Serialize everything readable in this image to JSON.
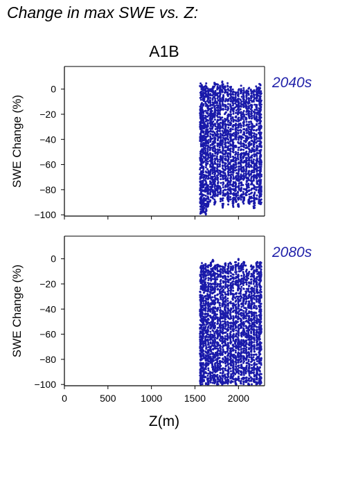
{
  "page": {
    "heading": "Change in max SWE vs. Z:",
    "scenario": "A1B",
    "xlabel": "Z(m)"
  },
  "colors": {
    "points": "#1a1aaa",
    "period_label": "#2222aa",
    "axis": "#000000"
  },
  "chart_data": [
    {
      "type": "scatter",
      "title": "A1B",
      "annotation": "2040s",
      "xlabel": "",
      "ylabel": "SWE Change (%)",
      "xlim": [
        0,
        2300
      ],
      "ylim": [
        -101,
        18
      ],
      "xticks": [],
      "yticks": [
        0,
        -20,
        -40,
        -60,
        -80,
        -100
      ],
      "grid": false,
      "series": [
        {
          "values_summary": "dense columns of points between Z=1560 and Z=2260 m",
          "x": [
            1565,
            1580,
            1600,
            1625,
            1650,
            1680,
            1705,
            1730,
            1760,
            1790,
            1820,
            1850,
            1880,
            1910,
            1940,
            1970,
            2000,
            2030,
            2060,
            2090,
            2120,
            2150,
            2180,
            2210,
            2240,
            2255
          ],
          "y_min": [
            -100,
            -99,
            -98,
            -100,
            -95,
            -90,
            -88,
            -92,
            -85,
            -90,
            -95,
            -86,
            -92,
            -88,
            -95,
            -90,
            -94,
            -88,
            -92,
            -85,
            -92,
            -90,
            -95,
            -88,
            -92,
            -93
          ],
          "y_max": [
            5,
            4,
            3,
            5,
            2,
            0,
            4,
            6,
            5,
            3,
            6,
            4,
            5,
            2,
            0,
            -2,
            0,
            3,
            1,
            0,
            2,
            0,
            0,
            3,
            5,
            5
          ]
        }
      ]
    },
    {
      "type": "scatter",
      "title": "",
      "annotation": "2080s",
      "xlabel": "Z(m)",
      "ylabel": "SWE Change (%)",
      "xlim": [
        0,
        2300
      ],
      "ylim": [
        -101,
        18
      ],
      "xticks": [
        0,
        500,
        1000,
        1500,
        2000
      ],
      "yticks": [
        0,
        -20,
        -40,
        -60,
        -80,
        -100
      ],
      "grid": false,
      "series": [
        {
          "values_summary": "dense columns of points between Z=1560 and Z=2260 m",
          "x": [
            1565,
            1580,
            1600,
            1625,
            1650,
            1680,
            1705,
            1730,
            1760,
            1790,
            1820,
            1850,
            1880,
            1910,
            1940,
            1970,
            2000,
            2030,
            2060,
            2090,
            2120,
            2150,
            2180,
            2210,
            2240,
            2255
          ],
          "y_min": [
            -100,
            -100,
            -99,
            -100,
            -100,
            -100,
            -99,
            -100,
            -100,
            -99,
            -100,
            -100,
            -100,
            -99,
            -100,
            -100,
            -99,
            -100,
            -100,
            -99,
            -100,
            -100,
            -99,
            -100,
            -100,
            -99
          ],
          "y_max": [
            -5,
            -3,
            -4,
            -2,
            -5,
            -3,
            0,
            -5,
            -4,
            -3,
            -6,
            -2,
            -4,
            -3,
            -5,
            -2,
            0,
            -4,
            0,
            -5,
            -10,
            -4,
            -6,
            -2,
            -3,
            -2
          ]
        }
      ]
    }
  ]
}
